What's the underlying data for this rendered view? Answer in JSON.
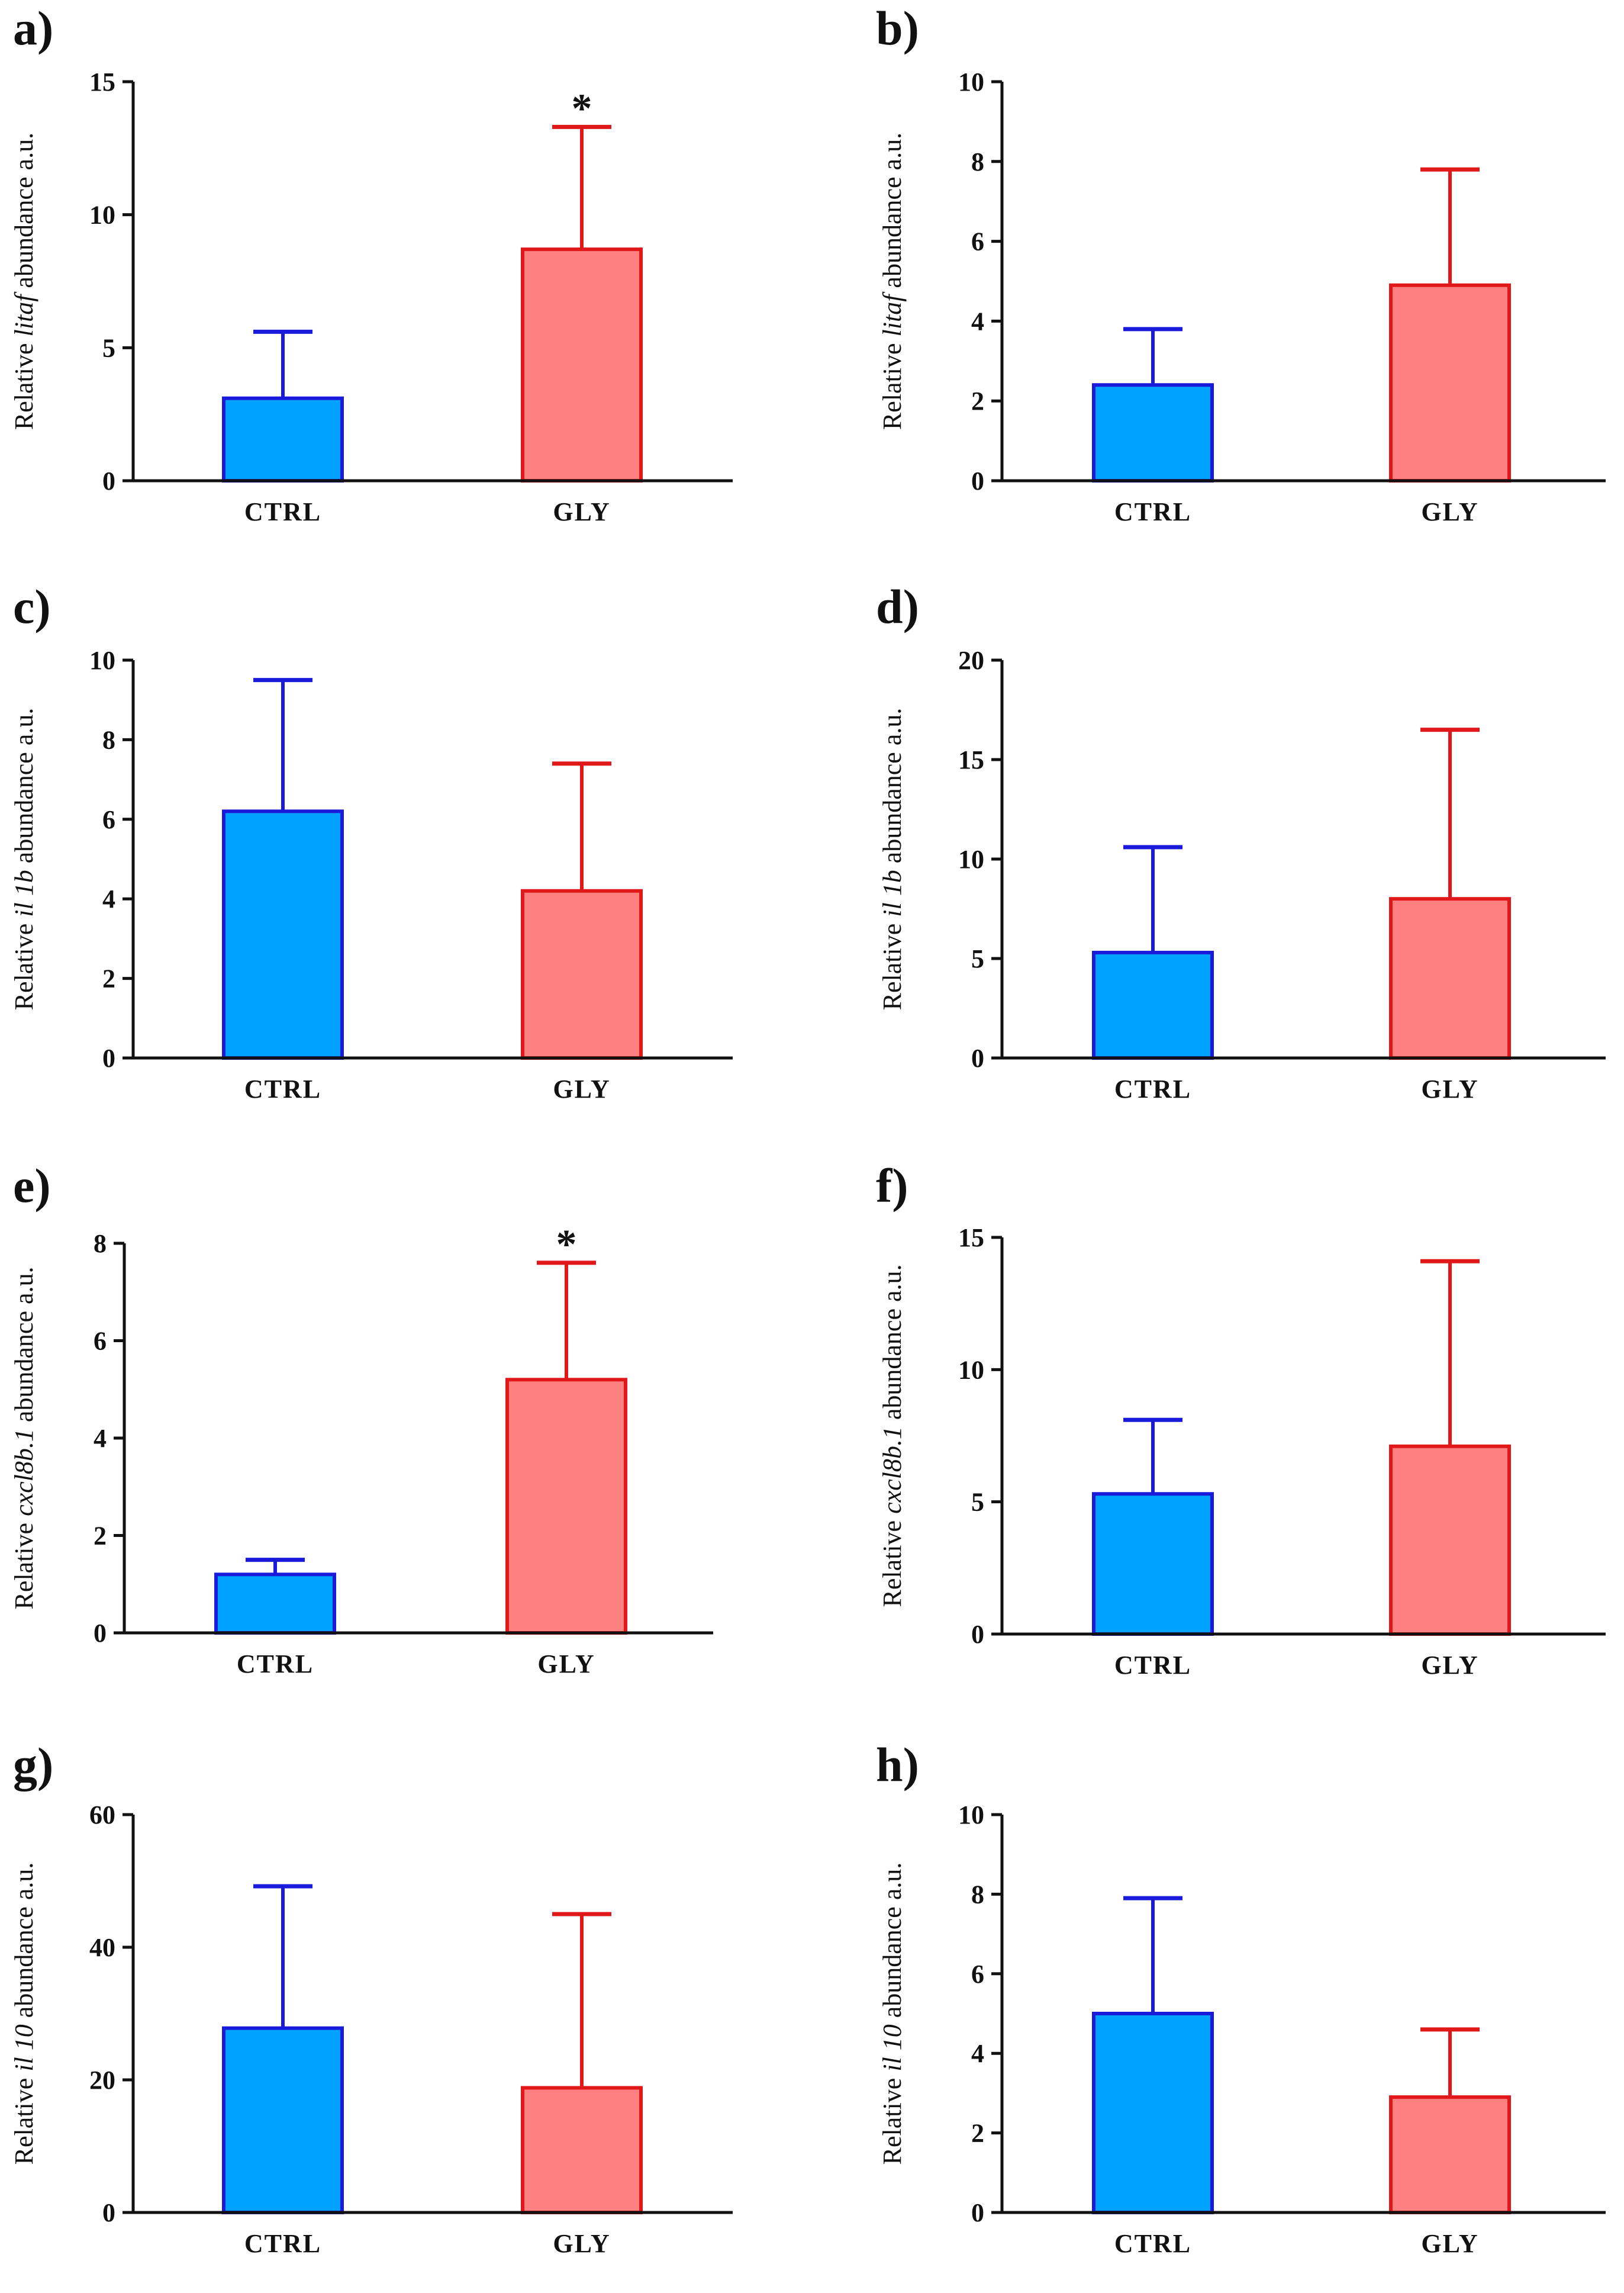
{
  "figure": {
    "colors": {
      "ctrl_fill": "#00A2FF",
      "ctrl_stroke": "#1A1ADB",
      "gly_fill": "#FF8080",
      "gly_stroke": "#E0181A",
      "axis": "#111111"
    }
  },
  "chart_data": [
    {
      "panel": "a)",
      "type": "bar",
      "ylabel_pre": "Relative ",
      "ylabel_gene": "litaf",
      "ylabel_post": " abundance a.u.",
      "categories": [
        "CTRL",
        "GLY"
      ],
      "values": [
        3.1,
        8.7
      ],
      "errors": [
        5.6,
        13.3
      ],
      "ylim": [
        0,
        15
      ],
      "yticks": [
        0,
        5,
        10,
        15
      ],
      "significance": [
        "",
        "*"
      ]
    },
    {
      "panel": "b)",
      "type": "bar",
      "ylabel_pre": "Relative ",
      "ylabel_gene": "litaf",
      "ylabel_post": " abundance a.u.",
      "categories": [
        "CTRL",
        "GLY"
      ],
      "values": [
        2.4,
        4.9
      ],
      "errors": [
        3.8,
        7.8
      ],
      "ylim": [
        0,
        10
      ],
      "yticks": [
        0,
        2,
        4,
        6,
        8,
        10
      ],
      "significance": [
        "",
        ""
      ]
    },
    {
      "panel": "c)",
      "type": "bar",
      "ylabel_pre": "Relative ",
      "ylabel_gene": "il 1b",
      "ylabel_post": " abundance a.u.",
      "categories": [
        "CTRL",
        "GLY"
      ],
      "values": [
        6.2,
        4.2
      ],
      "errors": [
        9.5,
        7.4
      ],
      "ylim": [
        0,
        10
      ],
      "yticks": [
        0,
        2,
        4,
        6,
        8,
        10
      ],
      "significance": [
        "",
        ""
      ]
    },
    {
      "panel": "d)",
      "type": "bar",
      "ylabel_pre": "Relative ",
      "ylabel_gene": "il 1b",
      "ylabel_post": " abundance a.u.",
      "categories": [
        "CTRL",
        "GLY"
      ],
      "values": [
        5.3,
        8.0
      ],
      "errors": [
        10.6,
        16.5
      ],
      "ylim": [
        0,
        20
      ],
      "yticks": [
        0,
        5,
        10,
        15,
        20
      ],
      "significance": [
        "",
        ""
      ]
    },
    {
      "panel": "e)",
      "type": "bar",
      "ylabel_pre": "Relative ",
      "ylabel_gene": "cxcl8b.1",
      "ylabel_post": " abundance a.u.",
      "categories": [
        "CTRL",
        "GLY"
      ],
      "values": [
        1.2,
        5.2
      ],
      "errors": [
        1.5,
        7.6
      ],
      "ylim": [
        0,
        8
      ],
      "yticks": [
        0,
        2,
        4,
        6,
        8
      ],
      "significance": [
        "",
        "*"
      ]
    },
    {
      "panel": "f)",
      "type": "bar",
      "ylabel_pre": "Relative ",
      "ylabel_gene": "cxcl8b.1",
      "ylabel_post": " abundance a.u.",
      "categories": [
        "CTRL",
        "GLY"
      ],
      "values": [
        5.3,
        7.1
      ],
      "errors": [
        8.1,
        14.1
      ],
      "ylim": [
        0,
        15
      ],
      "yticks": [
        0,
        5,
        10,
        15
      ],
      "significance": [
        "",
        ""
      ]
    },
    {
      "panel": "g)",
      "type": "bar",
      "ylabel_pre": "Relative ",
      "ylabel_gene": "il 10",
      "ylabel_post": " abundance a.u.",
      "categories": [
        "CTRL",
        "GLY"
      ],
      "values": [
        27.8,
        18.8
      ],
      "errors": [
        49.2,
        45.0
      ],
      "ylim": [
        0,
        60
      ],
      "yticks": [
        0,
        20,
        40,
        60
      ],
      "significance": [
        "",
        ""
      ]
    },
    {
      "panel": "h)",
      "type": "bar",
      "ylabel_pre": "Relative ",
      "ylabel_gene": "il 10",
      "ylabel_post": " abundance a.u.",
      "categories": [
        "CTRL",
        "GLY"
      ],
      "values": [
        5.0,
        2.9
      ],
      "errors": [
        7.9,
        4.6
      ],
      "ylim": [
        0,
        10
      ],
      "yticks": [
        0,
        2,
        4,
        6,
        8,
        10
      ],
      "significance": [
        "",
        ""
      ]
    }
  ]
}
